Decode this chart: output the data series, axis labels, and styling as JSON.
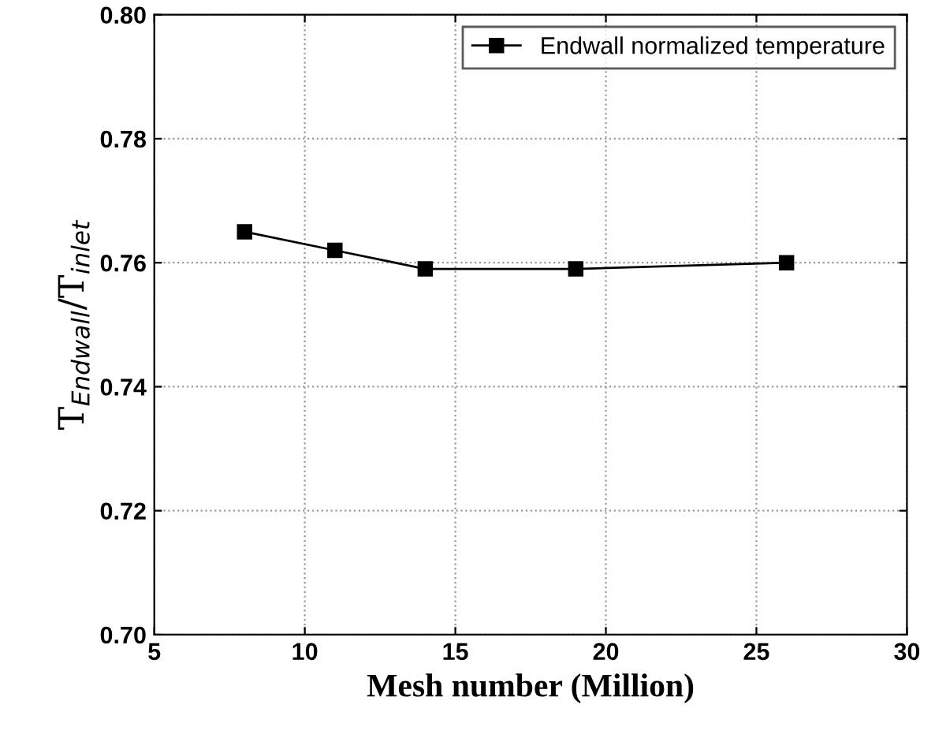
{
  "chart_data": {
    "type": "line",
    "xlabel": "Mesh number (Million)",
    "ylabel": "T$_{Endwall}$/T$_{inlet}$",
    "x": [
      8,
      11,
      14,
      19,
      26
    ],
    "series": [
      {
        "name": "Endwall normalized temperature",
        "color": "#000000",
        "values": [
          0.765,
          0.762,
          0.759,
          0.759,
          0.76
        ]
      }
    ],
    "xlim": [
      5,
      30
    ],
    "xticks": [
      5,
      10,
      15,
      20,
      25,
      30
    ],
    "ylim": [
      0.7,
      0.8
    ],
    "yticks": [
      {
        "value": 0.7,
        "label": "0.70"
      },
      {
        "value": 0.72,
        "label": "0.72"
      },
      {
        "value": 0.74,
        "label": "0.74"
      },
      {
        "value": 0.76,
        "label": "0.76"
      },
      {
        "value": 0.78,
        "label": "0.78"
      },
      {
        "value": 0.8,
        "label": "0.80"
      }
    ],
    "grid": true,
    "legend": "top right",
    "marker": "square",
    "line_style": "solid"
  }
}
